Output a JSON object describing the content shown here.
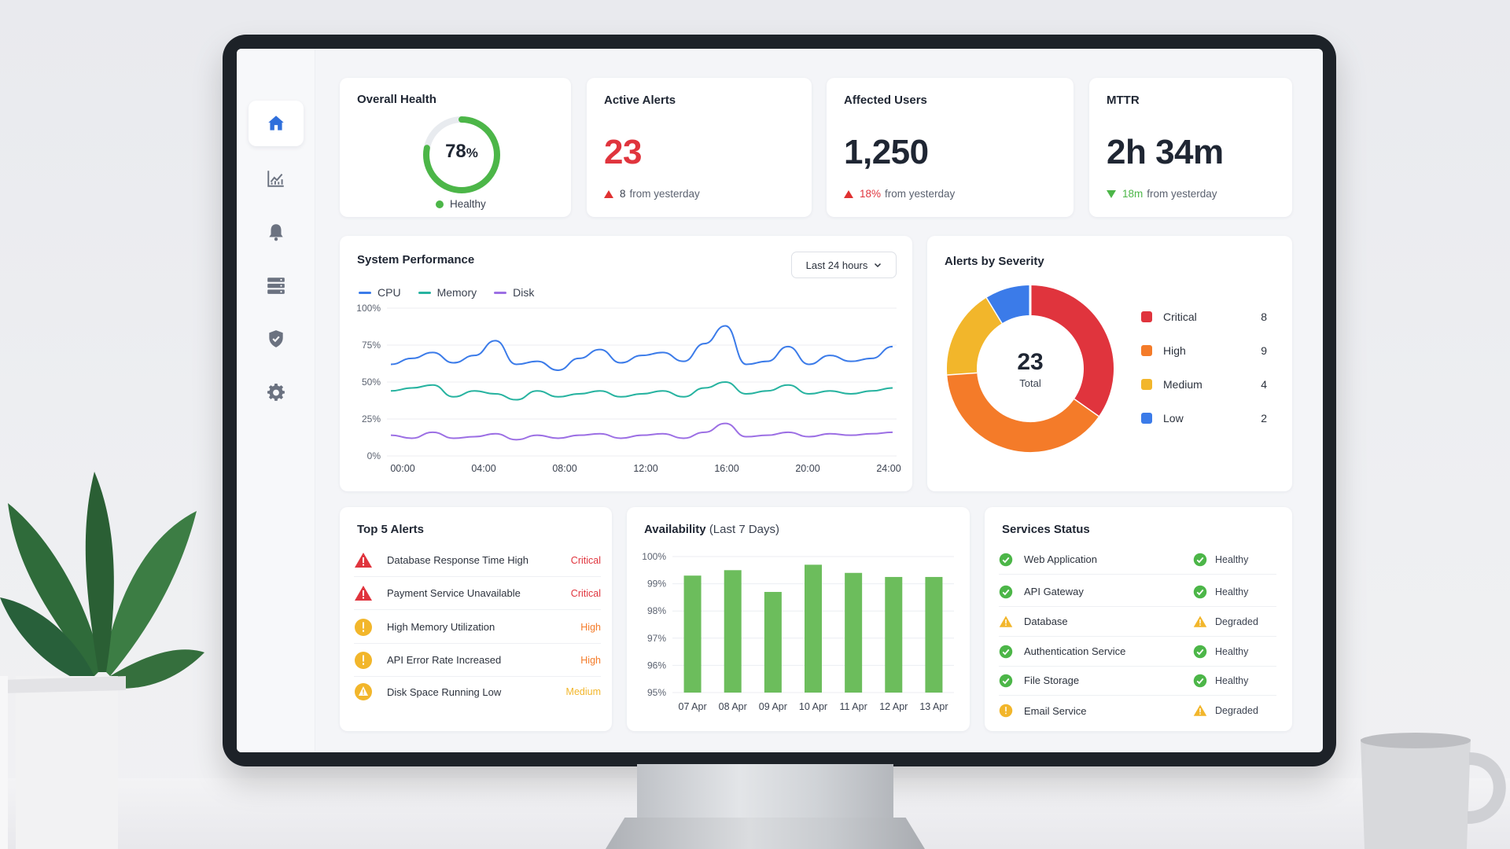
{
  "sidebar": {
    "items": [
      {
        "name": "home",
        "icon": "home-icon",
        "active": true
      },
      {
        "name": "analytics",
        "icon": "chart-icon",
        "active": false
      },
      {
        "name": "alerts",
        "icon": "bell-icon",
        "active": false
      },
      {
        "name": "servers",
        "icon": "server-icon",
        "active": false
      },
      {
        "name": "security",
        "icon": "shield-icon",
        "active": false
      },
      {
        "name": "settings",
        "icon": "gear-icon",
        "active": false
      }
    ]
  },
  "kpis": {
    "health": {
      "title": "Overall Health",
      "value": "78",
      "unit": "%",
      "percent": 78,
      "status": "Healthy"
    },
    "alerts": {
      "title": "Active Alerts",
      "value": "23",
      "delta": "8",
      "delta_text": "from yesterday"
    },
    "users": {
      "title": "Affected Users",
      "value": "1,250",
      "delta": "18%",
      "delta_text": "from yesterday"
    },
    "mttr": {
      "title": "MTTR",
      "value": "2h 34m",
      "delta": "18m",
      "delta_text": "from yesterday"
    }
  },
  "performance": {
    "title": "System Performance",
    "range_label": "Last 24 hours",
    "legend": [
      {
        "name": "CPU",
        "color": "#3b7be9"
      },
      {
        "name": "Memory",
        "color": "#27b3a0"
      },
      {
        "name": "Disk",
        "color": "#9c6fe4"
      }
    ],
    "yticks": [
      "100%",
      "75%",
      "50%",
      "25%",
      "0%"
    ],
    "xticks": [
      "00:00",
      "04:00",
      "08:00",
      "12:00",
      "16:00",
      "20:00",
      "24:00"
    ]
  },
  "severity": {
    "title": "Alerts by Severity",
    "total": "23",
    "total_label": "Total",
    "items": [
      {
        "name": "Critical",
        "count": "8",
        "value": 8,
        "color": "#e0343d"
      },
      {
        "name": "High",
        "count": "9",
        "value": 9,
        "color": "#f47b29"
      },
      {
        "name": "Medium",
        "count": "4",
        "value": 4,
        "color": "#f2b62b"
      },
      {
        "name": "Low",
        "count": "2",
        "value": 2,
        "color": "#3b7be9"
      }
    ]
  },
  "top_alerts": {
    "title": "Top 5 Alerts",
    "items": [
      {
        "label": "Database Response Time High",
        "severity": "Critical",
        "icon": "critical-warning-icon"
      },
      {
        "label": "Payment Service Unavailable",
        "severity": "Critical",
        "icon": "critical-warning-icon"
      },
      {
        "label": "High Memory Utilization",
        "severity": "High",
        "icon": "exclamation-circle-icon"
      },
      {
        "label": "API Error Rate Increased",
        "severity": "High",
        "icon": "exclamation-circle-icon"
      },
      {
        "label": "Disk Space Running Low",
        "severity": "Medium",
        "icon": "warning-circle-icon"
      }
    ]
  },
  "availability": {
    "title": "Availability",
    "subtitle": "(Last 7 Days)"
  },
  "services": {
    "title": "Services Status",
    "items": [
      {
        "name": "Web Application",
        "status": "Healthy"
      },
      {
        "name": "API Gateway",
        "status": "Healthy"
      },
      {
        "name": "Database",
        "status": "Degraded"
      },
      {
        "name": "Authentication Service",
        "status": "Healthy"
      },
      {
        "name": "File Storage",
        "status": "Healthy"
      },
      {
        "name": "Email Service",
        "status": "Degraded"
      }
    ]
  },
  "colors": {
    "critical": "#e0343d",
    "high": "#f47b29",
    "medium": "#f2b62b",
    "healthy": "#4cb648",
    "accent": "#2f6fdb"
  },
  "chart_data": [
    {
      "type": "line",
      "title": "System Performance",
      "x": [
        "00:00",
        "01:00",
        "02:00",
        "03:00",
        "04:00",
        "05:00",
        "06:00",
        "07:00",
        "08:00",
        "09:00",
        "10:00",
        "11:00",
        "12:00",
        "13:00",
        "14:00",
        "15:00",
        "16:00",
        "17:00",
        "18:00",
        "19:00",
        "20:00",
        "21:00",
        "22:00",
        "23:00",
        "24:00"
      ],
      "series": [
        {
          "name": "CPU",
          "values": [
            62,
            66,
            70,
            63,
            68,
            78,
            62,
            64,
            58,
            66,
            72,
            63,
            68,
            70,
            64,
            76,
            88,
            62,
            64,
            74,
            62,
            68,
            64,
            66,
            74
          ]
        },
        {
          "name": "Memory",
          "values": [
            44,
            46,
            48,
            40,
            44,
            42,
            38,
            44,
            40,
            42,
            44,
            40,
            42,
            44,
            40,
            46,
            50,
            42,
            44,
            48,
            42,
            44,
            42,
            44,
            46
          ]
        },
        {
          "name": "Disk",
          "values": [
            14,
            12,
            16,
            12,
            13,
            15,
            11,
            14,
            12,
            14,
            15,
            12,
            14,
            15,
            12,
            16,
            22,
            13,
            14,
            16,
            13,
            15,
            14,
            15,
            16
          ]
        }
      ],
      "ylim": [
        0,
        100
      ],
      "grid": true,
      "legend": "top-left"
    },
    {
      "type": "pie",
      "title": "Alerts by Severity",
      "categories": [
        "Critical",
        "High",
        "Medium",
        "Low"
      ],
      "values": [
        8,
        9,
        4,
        2
      ]
    },
    {
      "type": "bar",
      "title": "Availability (Last 7 Days)",
      "categories": [
        "07 Apr",
        "08 Apr",
        "09 Apr",
        "10 Apr",
        "11 Apr",
        "12 Apr",
        "13 Apr"
      ],
      "values": [
        99.3,
        99.5,
        98.7,
        99.7,
        99.4,
        99.25,
        99.25
      ],
      "yticks": [
        "100%",
        "99%",
        "98%",
        "97%",
        "96%",
        "95%"
      ],
      "ylim": [
        95,
        100
      ],
      "grid": true
    }
  ]
}
